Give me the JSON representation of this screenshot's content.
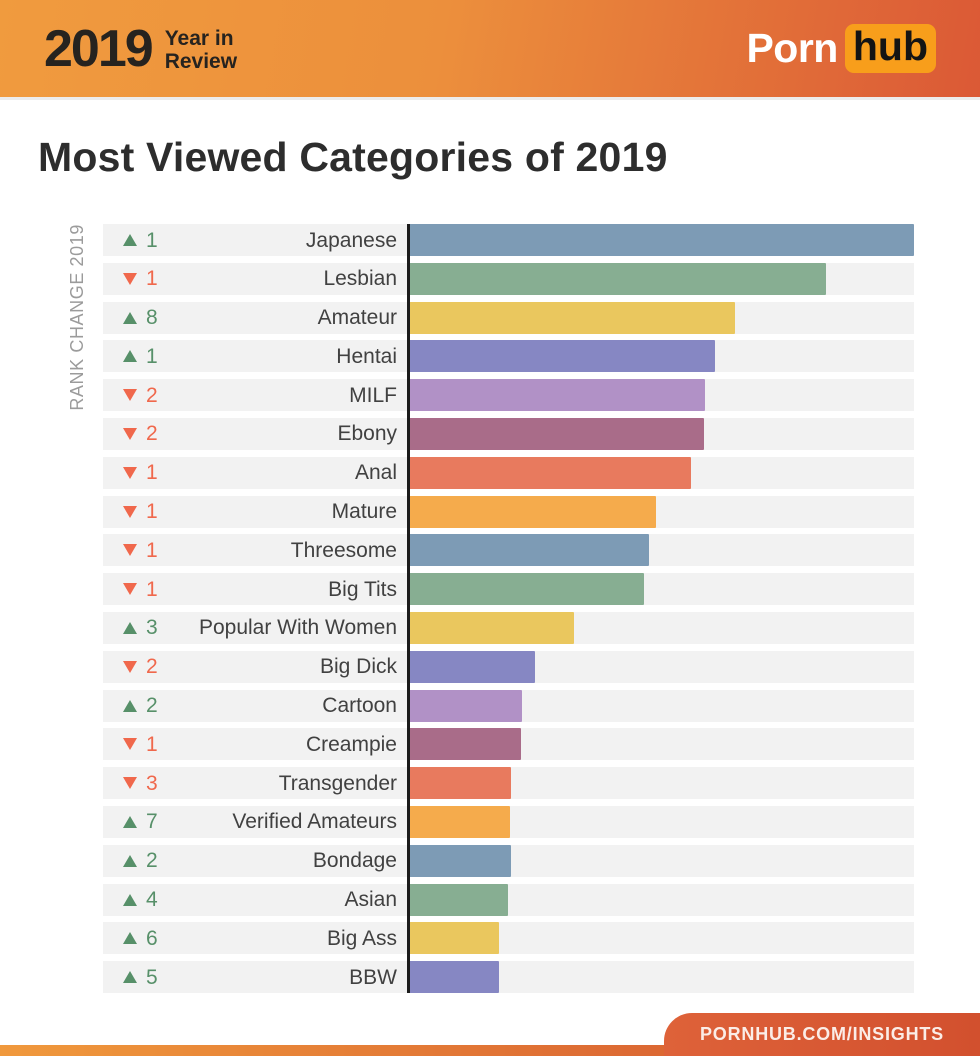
{
  "header": {
    "year": "2019",
    "tagline_line1": "Year in",
    "tagline_line2": "Review",
    "logo_part1": "Porn",
    "logo_part2": "hub"
  },
  "title": "Most Viewed Categories of 2019",
  "footer": {
    "url": "PORNHUB.COM/INSIGHTS"
  },
  "colors": {
    "header_gradient_start": "#F09B3E",
    "header_gradient_end": "#DB5936",
    "logo_hub_bg": "#F89E1B",
    "rank_up_green": "#579069",
    "rank_down_red": "#F0684C",
    "row_bg": "#F2F2F2",
    "axis_line": "#1C1C1C",
    "category_label_text": "#414141",
    "axis_label_text": "#9B9B9B",
    "footer_gradient_start": "#F0993C",
    "footer_gradient_end": "#D2502E"
  },
  "chart_data": {
    "type": "bar",
    "orientation": "horizontal",
    "title": "Most Viewed Categories of 2019",
    "axis_label": "RANK CHANGE 2019",
    "grid": false,
    "legend": "none",
    "value_axis_note": "no numeric axis shown; values are bar lengths as % of longest bar",
    "categories": [
      "Japanese",
      "Lesbian",
      "Amateur",
      "Hentai",
      "MILF",
      "Ebony",
      "Anal",
      "Mature",
      "Threesome",
      "Big Tits",
      "Popular With Women",
      "Big Dick",
      "Cartoon",
      "Creampie",
      "Transgender",
      "Verified Amateurs",
      "Bondage",
      "Asian",
      "Big Ass",
      "BBW"
    ],
    "rank_changes": [
      {
        "direction": "up",
        "value": 1
      },
      {
        "direction": "down",
        "value": 1
      },
      {
        "direction": "up",
        "value": 8
      },
      {
        "direction": "up",
        "value": 1
      },
      {
        "direction": "down",
        "value": 2
      },
      {
        "direction": "down",
        "value": 2
      },
      {
        "direction": "down",
        "value": 1
      },
      {
        "direction": "down",
        "value": 1
      },
      {
        "direction": "down",
        "value": 1
      },
      {
        "direction": "down",
        "value": 1
      },
      {
        "direction": "up",
        "value": 3
      },
      {
        "direction": "down",
        "value": 2
      },
      {
        "direction": "up",
        "value": 2
      },
      {
        "direction": "down",
        "value": 1
      },
      {
        "direction": "down",
        "value": 3
      },
      {
        "direction": "up",
        "value": 7
      },
      {
        "direction": "up",
        "value": 2
      },
      {
        "direction": "up",
        "value": 4
      },
      {
        "direction": "up",
        "value": 6
      },
      {
        "direction": "up",
        "value": 5
      }
    ],
    "values_pct_of_max": [
      100,
      82.5,
      64.5,
      60.5,
      58.6,
      58.4,
      55.8,
      48.9,
      47.4,
      46.4,
      32.5,
      24.8,
      22.2,
      22.0,
      20.0,
      19.8,
      20.0,
      19.4,
      17.7,
      17.7
    ],
    "bar_colors": [
      "#7D9BB5",
      "#87AE92",
      "#EAC75E",
      "#8687C3",
      "#B191C6",
      "#A96C89",
      "#E87A5E",
      "#F5AB4C",
      "#7D9BB5",
      "#87AE92",
      "#EAC75E",
      "#8687C3",
      "#B191C6",
      "#A96C89",
      "#E87A5E",
      "#F5AB4C",
      "#7D9BB5",
      "#87AE92",
      "#EAC75E",
      "#8687C3"
    ]
  }
}
